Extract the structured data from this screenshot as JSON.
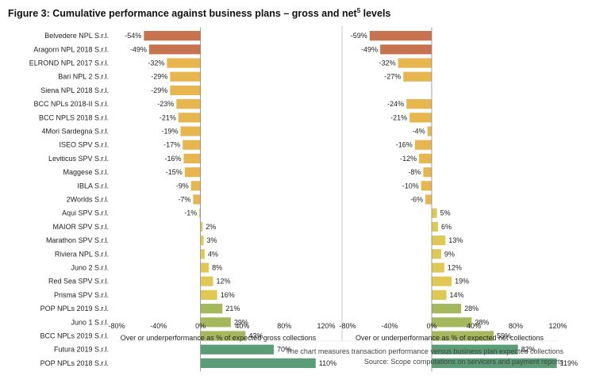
{
  "figure": {
    "title": "Figure 3: Cumulative performance against business plans – gross and net",
    "title_superscript": "5",
    "title_suffix": " levels",
    "note": "The chart measures transaction performance versus business plan expected collections",
    "source": "Source: Scope computations on servicers and payment reports"
  },
  "chart_data": [
    {
      "type": "bar",
      "orientation": "horizontal",
      "panel": "gross",
      "categories": [
        "Belvedere NPL S.r.l.",
        "Aragorn NPL 2018 S.r.l.",
        "ELROND NPL 2017 S.r.l.",
        "Bari NPL 2 S.r.l.",
        "Siena NPL 2018 S.r.l.",
        "BCC NPLs 2018-II S.r.l.",
        "BCC NPLS 2018 S.r.l.",
        "4Mori Sardegna S.r.l.",
        "ISEO SPV S.r.l.",
        "Leviticus SPV S.r.l.",
        "Maggese S.r.l.",
        "IBLA S.r.l.",
        "2Worlds S.r.l.",
        "Aqui SPV S.r.l.",
        "MAIOR SPV S.r.l.",
        "Marathon SPV S.r.l.",
        "Riviera NPL S.r.l.",
        "Juno 2 S.r.l.",
        "Red Sea SPV S.r.l.",
        "Prisma SPV S.r.l.",
        "POP NPLs 2019 S.r.l.",
        "Juno 1 S.r.l.",
        "BCC NPLs 2019 S.r.l.",
        "Futura 2019 S.r.l.",
        "POP NPLs 2018 S.r.l."
      ],
      "values": [
        -54,
        -49,
        -32,
        -29,
        -29,
        -23,
        -21,
        -19,
        -17,
        -16,
        -15,
        -9,
        -7,
        -1,
        2,
        3,
        4,
        8,
        12,
        16,
        21,
        29,
        43,
        70,
        110
      ],
      "labels": [
        "-54%",
        "-49%",
        "-32%",
        "-29%",
        "-29%",
        "-23%",
        "-21%",
        "-19%",
        "-17%",
        "-16%",
        "-15%",
        "-9%",
        "-7%",
        "-1%",
        "2%",
        "3%",
        "4%",
        "8%",
        "12%",
        "16%",
        "21%",
        "29%",
        "43%",
        "70%",
        "110%"
      ],
      "xlim": [
        -80,
        120
      ],
      "xticks": [
        -80,
        -40,
        0,
        40,
        80,
        120
      ],
      "xtick_labels": [
        "-80%",
        "-40%",
        "0%",
        "40%",
        "80%",
        "120%"
      ],
      "xlabel": "Over or underperformance as % of expected gross collections",
      "ylabel": ""
    },
    {
      "type": "bar",
      "orientation": "horizontal",
      "panel": "net",
      "categories": [
        "Belvedere NPL S.r.l.",
        "Aragorn NPL 2018 S.r.l.",
        "ELROND NPL 2017 S.r.l.",
        "Bari NPL 2 S.r.l.",
        "Siena NPL 2018 S.r.l.",
        "BCC NPLs 2018-II S.r.l.",
        "BCC NPLS 2018 S.r.l.",
        "4Mori Sardegna S.r.l.",
        "ISEO SPV S.r.l.",
        "Leviticus SPV S.r.l.",
        "Maggese S.r.l.",
        "IBLA S.r.l.",
        "2Worlds S.r.l.",
        "Aqui SPV S.r.l.",
        "MAIOR SPV S.r.l.",
        "Marathon SPV S.r.l.",
        "Riviera NPL S.r.l.",
        "Juno 2 S.r.l.",
        "Red Sea SPV S.r.l.",
        "Prisma SPV S.r.l.",
        "POP NPLs 2019 S.r.l.",
        "Juno 1 S.r.l.",
        "BCC NPLs 2019 S.r.l.",
        "Futura 2019 S.r.l.",
        "POP NPLs 2018 S.r.l."
      ],
      "values": [
        -59,
        -49,
        -32,
        -27,
        null,
        -24,
        -21,
        -4,
        -16,
        -12,
        -8,
        -10,
        -6,
        5,
        6,
        13,
        9,
        12,
        19,
        14,
        28,
        38,
        59,
        82,
        119
      ],
      "labels": [
        "-59%",
        "-49%",
        "-32%",
        "-27%",
        "",
        "-24%",
        "-21%",
        "-4%",
        "-16%",
        "-12%",
        "-8%",
        "-10%",
        "-6%",
        "5%",
        "6%",
        "13%",
        "9%",
        "12%",
        "19%",
        "14%",
        "28%",
        "38%",
        "59%",
        "82%",
        "119%"
      ],
      "xlim": [
        -80,
        120
      ],
      "xticks": [
        -80,
        -40,
        0,
        40,
        80,
        120
      ],
      "xtick_labels": [
        "-80%",
        "-40%",
        "0%",
        "40%",
        "80%",
        "120%"
      ],
      "xlabel": "Over or underperformance as % of expected net collections",
      "ylabel": ""
    }
  ],
  "colors": {
    "strong_negative": "#c8734f",
    "negative": "#e8b64f",
    "low_positive": "#dfc954",
    "mid_positive": "#a6b85e",
    "high_positive": "#5a9d77",
    "axis": "#888888"
  }
}
